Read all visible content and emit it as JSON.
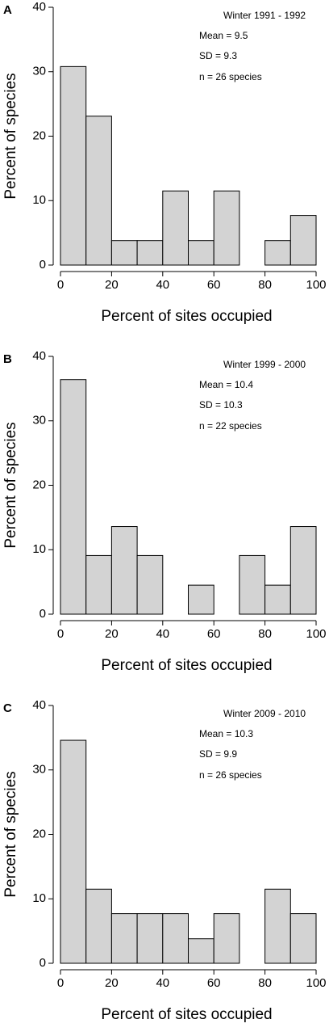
{
  "chart_data": [
    {
      "type": "histogram",
      "panel": "A",
      "annotations": [
        "Winter 1991 - 1992",
        "Mean = 9.5",
        "SD = 9.3",
        "n = 26 species"
      ],
      "xlabel": "Percent of sites occupied",
      "ylabel": "Percent of species",
      "color": "#d3d3d3",
      "bins": [
        0,
        10,
        20,
        30,
        40,
        50,
        60,
        70,
        80,
        90,
        100
      ],
      "counts": [
        30.8,
        23.1,
        3.8,
        3.8,
        11.5,
        3.8,
        11.5,
        0,
        3.8,
        7.7
      ],
      "xlim": [
        0,
        100
      ],
      "ylim": [
        0,
        40
      ],
      "xticks": [
        0,
        20,
        40,
        60,
        80,
        100
      ],
      "yticks": [
        0,
        10,
        20,
        30,
        40
      ]
    },
    {
      "type": "histogram",
      "panel": "B",
      "annotations": [
        "Winter 1999 - 2000",
        "Mean = 10.4",
        "SD = 10.3",
        "n = 22 species"
      ],
      "xlabel": "Percent of sites occupied",
      "ylabel": "Percent of species",
      "color": "#d3d3d3",
      "bins": [
        0,
        10,
        20,
        30,
        40,
        50,
        60,
        70,
        80,
        90,
        100
      ],
      "counts": [
        36.4,
        9.1,
        13.6,
        9.1,
        0,
        4.5,
        0,
        9.1,
        4.5,
        13.6
      ],
      "xlim": [
        0,
        100
      ],
      "ylim": [
        0,
        40
      ],
      "xticks": [
        0,
        20,
        40,
        60,
        80,
        100
      ],
      "yticks": [
        0,
        10,
        20,
        30,
        40
      ]
    },
    {
      "type": "histogram",
      "panel": "C",
      "annotations": [
        "Winter 2009 - 2010",
        "Mean = 10.3",
        "SD = 9.9",
        "n = 26 species"
      ],
      "xlabel": "Percent of sites occupied",
      "ylabel": "Percent of species",
      "color": "#d3d3d3",
      "bins": [
        0,
        10,
        20,
        30,
        40,
        50,
        60,
        70,
        80,
        90,
        100
      ],
      "counts": [
        34.6,
        11.5,
        7.7,
        7.7,
        7.7,
        3.8,
        7.7,
        0,
        11.5,
        7.7
      ],
      "xlim": [
        0,
        100
      ],
      "ylim": [
        0,
        40
      ],
      "xticks": [
        0,
        20,
        40,
        60,
        80,
        100
      ],
      "yticks": [
        0,
        10,
        20,
        30,
        40
      ]
    }
  ]
}
